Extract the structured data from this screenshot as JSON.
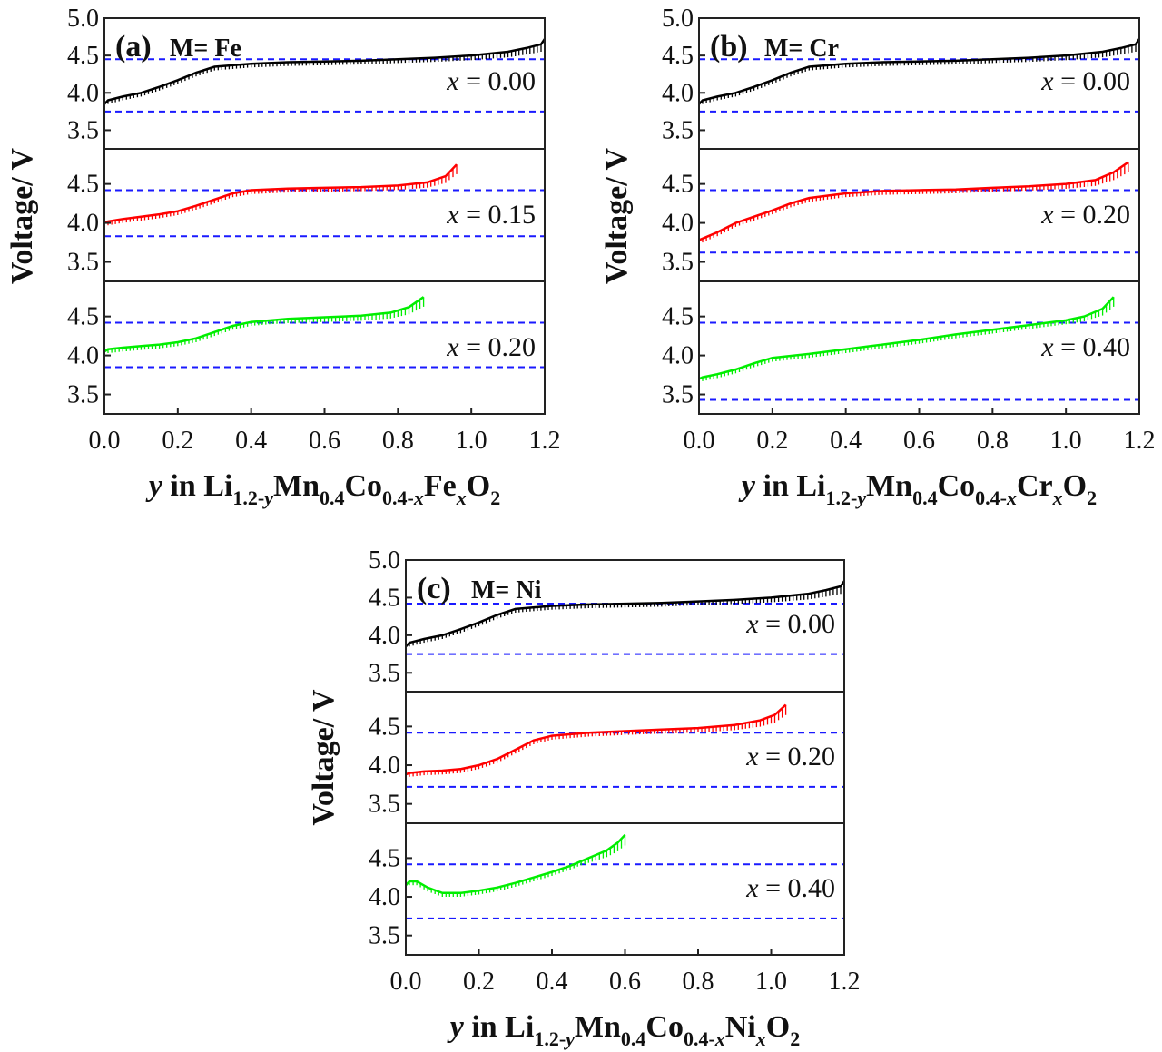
{
  "chart_data": [
    {
      "type": "line",
      "label": "(a)",
      "metal_label": "M= Fe",
      "xlabel": {
        "var": "y",
        "pre": "in Li",
        "s1": "1.2-",
        "s1var": "y",
        "m1": "Mn",
        "s2": "0.4",
        "m2": "Co",
        "s3": "0.4-",
        "s3var": "x",
        "m3": "Fe",
        "s4var": "x",
        "m4": "O",
        "s5": "2"
      },
      "ylabel": "Voltage/ V",
      "xlim": [
        0,
        1.2
      ],
      "xticks": [
        "0.0",
        "0.2",
        "0.4",
        "0.6",
        "0.8",
        "1.0",
        "1.2"
      ],
      "xtick_values": [
        0,
        0.2,
        0.4,
        0.6,
        0.8,
        1.0,
        1.2
      ],
      "subplots": [
        {
          "ylim": [
            3.25,
            5.0
          ],
          "yticks": [
            "3.5",
            "4.0",
            "4.5",
            "5.0"
          ],
          "ytick_values": [
            3.5,
            4.0,
            4.5,
            5.0
          ],
          "annotation": "x = 0.00",
          "color": "#000000",
          "hlines": [
            4.45,
            3.75
          ],
          "series": {
            "x": [
              0.0,
              0.01,
              0.05,
              0.1,
              0.15,
              0.2,
              0.25,
              0.3,
              0.4,
              0.5,
              0.6,
              0.7,
              0.8,
              0.9,
              1.0,
              1.1,
              1.15,
              1.19,
              1.2
            ],
            "y": [
              3.85,
              3.9,
              3.95,
              4.0,
              4.08,
              4.17,
              4.27,
              4.35,
              4.39,
              4.41,
              4.42,
              4.43,
              4.45,
              4.47,
              4.5,
              4.55,
              4.6,
              4.65,
              4.72
            ]
          }
        },
        {
          "ylim": [
            3.25,
            4.95
          ],
          "yticks": [
            "3.5",
            "4.0",
            "4.5"
          ],
          "ytick_values": [
            3.5,
            4.0,
            4.5
          ],
          "annotation": "x = 0.15",
          "color": "#ff0000",
          "hlines": [
            4.42,
            3.83
          ],
          "series": {
            "x": [
              0.0,
              0.01,
              0.05,
              0.1,
              0.15,
              0.2,
              0.25,
              0.3,
              0.35,
              0.4,
              0.5,
              0.6,
              0.7,
              0.8,
              0.88,
              0.93,
              0.96
            ],
            "y": [
              4.0,
              4.02,
              4.05,
              4.08,
              4.11,
              4.15,
              4.22,
              4.3,
              4.38,
              4.42,
              4.44,
              4.45,
              4.46,
              4.48,
              4.52,
              4.6,
              4.75
            ]
          }
        },
        {
          "ylim": [
            3.25,
            4.95
          ],
          "yticks": [
            "3.5",
            "4.0",
            "4.5"
          ],
          "ytick_values": [
            3.5,
            4.0,
            4.5
          ],
          "annotation": "x = 0.20",
          "color": "#00ee00",
          "hlines": [
            4.42,
            3.85
          ],
          "series": {
            "x": [
              0.0,
              0.01,
              0.05,
              0.1,
              0.15,
              0.2,
              0.25,
              0.3,
              0.35,
              0.4,
              0.5,
              0.6,
              0.7,
              0.78,
              0.83,
              0.87
            ],
            "y": [
              4.05,
              4.08,
              4.1,
              4.12,
              4.14,
              4.17,
              4.22,
              4.3,
              4.38,
              4.43,
              4.47,
              4.49,
              4.51,
              4.55,
              4.62,
              4.75
            ]
          }
        }
      ]
    },
    {
      "type": "line",
      "label": "(b)",
      "metal_label": "M= Cr",
      "xlabel": {
        "var": "y",
        "pre": "in Li",
        "s1": "1.2-",
        "s1var": "y",
        "m1": "Mn",
        "s2": "0.4",
        "m2": "Co",
        "s3": "0.4-",
        "s3var": "x",
        "m3": "Cr",
        "s4var": "x",
        "m4": "O",
        "s5": "2"
      },
      "ylabel": "Voltage/ V",
      "xlim": [
        0,
        1.2
      ],
      "xticks": [
        "0.0",
        "0.2",
        "0.4",
        "0.6",
        "0.8",
        "1.0",
        "1.2"
      ],
      "xtick_values": [
        0,
        0.2,
        0.4,
        0.6,
        0.8,
        1.0,
        1.2
      ],
      "subplots": [
        {
          "ylim": [
            3.25,
            5.0
          ],
          "yticks": [
            "3.5",
            "4.0",
            "4.5",
            "5.0"
          ],
          "ytick_values": [
            3.5,
            4.0,
            4.5,
            5.0
          ],
          "annotation": "x = 0.00",
          "color": "#000000",
          "hlines": [
            4.45,
            3.75
          ],
          "series": {
            "x": [
              0.0,
              0.01,
              0.05,
              0.1,
              0.15,
              0.2,
              0.25,
              0.3,
              0.4,
              0.5,
              0.6,
              0.7,
              0.8,
              0.9,
              1.0,
              1.1,
              1.15,
              1.19,
              1.2
            ],
            "y": [
              3.85,
              3.9,
              3.95,
              4.0,
              4.08,
              4.17,
              4.27,
              4.35,
              4.39,
              4.41,
              4.42,
              4.43,
              4.45,
              4.47,
              4.5,
              4.55,
              4.6,
              4.65,
              4.72
            ]
          }
        },
        {
          "ylim": [
            3.25,
            4.95
          ],
          "yticks": [
            "3.5",
            "4.0",
            "4.5"
          ],
          "ytick_values": [
            3.5,
            4.0,
            4.5
          ],
          "annotation": "x = 0.20",
          "color": "#ff0000",
          "hlines": [
            4.42,
            3.62
          ],
          "series": {
            "x": [
              0.0,
              0.01,
              0.05,
              0.1,
              0.15,
              0.2,
              0.25,
              0.3,
              0.4,
              0.5,
              0.6,
              0.7,
              0.8,
              0.9,
              1.0,
              1.08,
              1.13,
              1.17
            ],
            "y": [
              3.78,
              3.8,
              3.88,
              4.0,
              4.08,
              4.16,
              4.25,
              4.32,
              4.38,
              4.41,
              4.42,
              4.43,
              4.45,
              4.47,
              4.5,
              4.55,
              4.65,
              4.78
            ]
          }
        },
        {
          "ylim": [
            3.25,
            4.95
          ],
          "yticks": [
            "3.5",
            "4.0",
            "4.5"
          ],
          "ytick_values": [
            3.5,
            4.0,
            4.5
          ],
          "annotation": "x = 0.40",
          "color": "#00ee00",
          "hlines": [
            4.42,
            3.43
          ],
          "series": {
            "x": [
              0.0,
              0.01,
              0.05,
              0.1,
              0.15,
              0.2,
              0.3,
              0.4,
              0.5,
              0.6,
              0.7,
              0.8,
              0.9,
              1.0,
              1.05,
              1.1,
              1.13
            ],
            "y": [
              3.7,
              3.72,
              3.76,
              3.82,
              3.9,
              3.97,
              4.02,
              4.08,
              4.14,
              4.2,
              4.27,
              4.33,
              4.39,
              4.45,
              4.5,
              4.6,
              4.75
            ]
          }
        }
      ]
    },
    {
      "type": "line",
      "label": "(c)",
      "metal_label": "M= Ni",
      "xlabel": {
        "var": "y",
        "pre": "in Li",
        "s1": "1.2-",
        "s1var": "y",
        "m1": "Mn",
        "s2": "0.4",
        "m2": "Co",
        "s3": "0.4-",
        "s3var": "x",
        "m3": "Ni",
        "s4var": "x",
        "m4": "O",
        "s5": "2"
      },
      "ylabel": "Voltage/ V",
      "xlim": [
        0,
        1.2
      ],
      "xticks": [
        "0.0",
        "0.2",
        "0.4",
        "0.6",
        "0.8",
        "1.0",
        "1.2"
      ],
      "xtick_values": [
        0,
        0.2,
        0.4,
        0.6,
        0.8,
        1.0,
        1.2
      ],
      "subplots": [
        {
          "ylim": [
            3.25,
            5.0
          ],
          "yticks": [
            "3.5",
            "4.0",
            "4.5",
            "5.0"
          ],
          "ytick_values": [
            3.5,
            4.0,
            4.5,
            5.0
          ],
          "annotation": "x = 0.00",
          "color": "#000000",
          "hlines": [
            4.42,
            3.75
          ],
          "series": {
            "x": [
              0.0,
              0.01,
              0.05,
              0.1,
              0.15,
              0.2,
              0.25,
              0.3,
              0.4,
              0.5,
              0.6,
              0.7,
              0.8,
              0.9,
              1.0,
              1.1,
              1.15,
              1.19,
              1.2
            ],
            "y": [
              3.85,
              3.9,
              3.95,
              4.0,
              4.08,
              4.17,
              4.27,
              4.35,
              4.39,
              4.41,
              4.42,
              4.43,
              4.45,
              4.47,
              4.5,
              4.55,
              4.6,
              4.65,
              4.72
            ]
          }
        },
        {
          "ylim": [
            3.25,
            4.95
          ],
          "yticks": [
            "3.5",
            "4.0",
            "4.5"
          ],
          "ytick_values": [
            3.5,
            4.0,
            4.5
          ],
          "annotation": "x = 0.20",
          "color": "#ff0000",
          "hlines": [
            4.42,
            3.72
          ],
          "series": {
            "x": [
              0.0,
              0.01,
              0.05,
              0.1,
              0.15,
              0.2,
              0.25,
              0.3,
              0.35,
              0.4,
              0.5,
              0.6,
              0.7,
              0.8,
              0.9,
              0.97,
              1.01,
              1.04
            ],
            "y": [
              3.88,
              3.9,
              3.92,
              3.93,
              3.95,
              4.0,
              4.08,
              4.2,
              4.32,
              4.38,
              4.42,
              4.44,
              4.46,
              4.48,
              4.52,
              4.58,
              4.65,
              4.78
            ]
          }
        },
        {
          "ylim": [
            3.25,
            4.95
          ],
          "yticks": [
            "3.5",
            "4.0",
            "4.5"
          ],
          "ytick_values": [
            3.5,
            4.0,
            4.5
          ],
          "annotation": "x = 0.40",
          "color": "#00ee00",
          "hlines": [
            4.42,
            3.72
          ],
          "series": {
            "x": [
              0.0,
              0.01,
              0.03,
              0.06,
              0.1,
              0.15,
              0.2,
              0.25,
              0.3,
              0.35,
              0.4,
              0.45,
              0.5,
              0.55,
              0.58,
              0.6
            ],
            "y": [
              4.15,
              4.2,
              4.2,
              4.12,
              4.05,
              4.05,
              4.08,
              4.12,
              4.18,
              4.25,
              4.32,
              4.4,
              4.5,
              4.6,
              4.7,
              4.8
            ]
          }
        }
      ]
    }
  ]
}
